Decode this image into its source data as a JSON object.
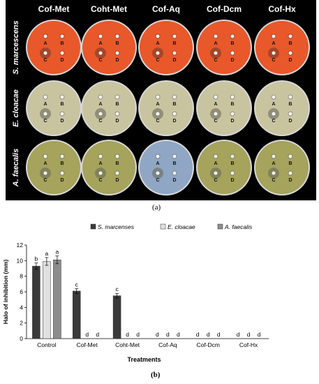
{
  "photo_panel": {
    "caption": "(a)",
    "column_headers": [
      "Cof-Met",
      "Coht-Met",
      "Cof-Aq",
      "Cof-Dcm",
      "Cof-Hx"
    ],
    "row_labels": [
      "S. marcescens",
      "E. cloacae",
      "A. faecalis"
    ],
    "well_labels": [
      "A",
      "B",
      "C",
      "D"
    ],
    "colors": {
      "background": "#000000",
      "header_text": "#ffffff",
      "s_marcescens_plate": "#e8582a",
      "e_cloacae_plate": "#c9c4a0",
      "a_faecalis_plate": "#a5a35c",
      "aq_faecalis_plate": "#8fa7c4"
    }
  },
  "chart_caption": "(b)",
  "chart_data": {
    "type": "bar",
    "categories": [
      "Control",
      "Cof-Met",
      "Coht-Met",
      "Cof-Aq",
      "Cof-Dcm",
      "Cof-Hx"
    ],
    "series": [
      {
        "name": "S. marcenses",
        "color": "#3a3a3a",
        "values": [
          9.3,
          6.1,
          5.5,
          0,
          0,
          0
        ],
        "errors": [
          0.4,
          0.3,
          0.3,
          0,
          0,
          0
        ],
        "labels": [
          "b",
          "c",
          "c",
          "d",
          "d",
          "d"
        ]
      },
      {
        "name": "E. cloacae",
        "color": "#e0e0e0",
        "values": [
          9.9,
          0,
          0,
          0,
          0,
          0
        ],
        "errors": [
          0.5,
          0,
          0,
          0,
          0,
          0
        ],
        "labels": [
          "a",
          "d",
          "d",
          "d",
          "d",
          "d"
        ]
      },
      {
        "name": "A. faecalis",
        "color": "#8c8c8c",
        "values": [
          10.1,
          0,
          0,
          0,
          0,
          0
        ],
        "errors": [
          0.5,
          0,
          0,
          0,
          0,
          0
        ],
        "labels": [
          "a",
          "d",
          "d",
          "d",
          "d",
          "d"
        ]
      }
    ],
    "xlabel": "Treatments",
    "ylabel": "Halo of inhibition (mm)",
    "ylim": [
      0,
      12
    ],
    "yticks": [
      0,
      2,
      4,
      6,
      8,
      10,
      12
    ],
    "grid": false,
    "legend_position": "top"
  }
}
